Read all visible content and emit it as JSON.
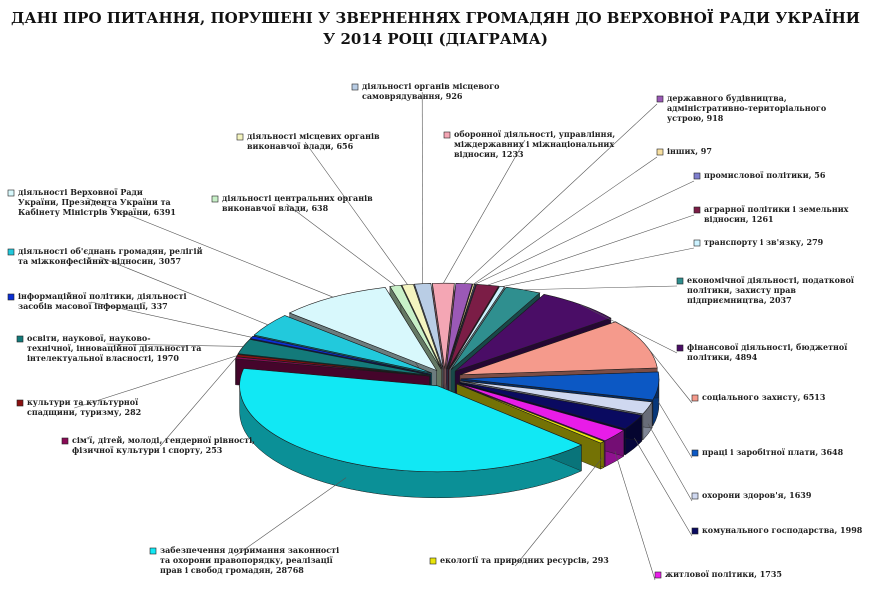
{
  "title": {
    "line1": "ДАНІ ПРО ПИТАННЯ, ПОРУШЕНІ У ЗВЕРНЕННЯХ ГРОМАДЯН ДО ВЕРХОВНОЇ РАДИ УКРАЇНИ",
    "line2": "У 2014 РОЦІ (ДІАГРАМА)"
  },
  "chart_data": {
    "type": "pie",
    "title": "ДАНІ ПРО ПИТАННЯ, ПОРУШЕНІ У ЗВЕРНЕННЯХ ГРОМАДЯН ДО ВЕРХОВНОЇ РАДИ УКРАЇНИ У 2014 РОЦІ (ДІАГРАМА)",
    "slices": [
      {
        "label": [
          "діяльності органів місцевого",
          "самоврядування, 926"
        ],
        "value": 926,
        "color": "#b9cde5"
      },
      {
        "label": [
          "оборонної діяльності, управління,",
          "міждержавних і міжнаціональних",
          "відносин, 1233"
        ],
        "value": 1233,
        "color": "#f4a6b4"
      },
      {
        "label": [
          "державного будівництва,",
          "адміністративно-територіального",
          "устрою, 918"
        ],
        "value": 918,
        "color": "#9b59b6"
      },
      {
        "label": [
          "інших, 97"
        ],
        "value": 97,
        "color": "#f7dfa0"
      },
      {
        "label": [
          "промислової політики, 56"
        ],
        "value": 56,
        "color": "#7f7fcf"
      },
      {
        "label": [
          "аграрної політики і земельних",
          "відносин, 1261"
        ],
        "value": 1261,
        "color": "#7b1d46"
      },
      {
        "label": [
          "транспорту і зв'язку, 279"
        ],
        "value": 279,
        "color": "#ccf2ff"
      },
      {
        "label": [
          "економічної діяльності, податкової",
          "політики, захисту прав",
          "підприємництва, 2037"
        ],
        "value": 2037,
        "color": "#2f8f8f"
      },
      {
        "label": [
          "фінансової діяльності, бюджетної",
          "політики, 4894"
        ],
        "value": 4894,
        "color": "#4a0d66"
      },
      {
        "label": [
          "соціального захисту, 6513"
        ],
        "value": 6513,
        "color": "#f59a8c"
      },
      {
        "label": [
          "праці і заробітної плати, 3648"
        ],
        "value": 3648,
        "color": "#0c58c4"
      },
      {
        "label": [
          "охорони здоров'я, 1639"
        ],
        "value": 1639,
        "color": "#cfd8f0"
      },
      {
        "label": [
          "комунального господарства, 1998"
        ],
        "value": 1998,
        "color": "#0a0a60"
      },
      {
        "label": [
          "житлової політики, 1735"
        ],
        "value": 1735,
        "color": "#e81ce8"
      },
      {
        "label": [
          "екології та природних ресурсів, 293"
        ],
        "value": 293,
        "color": "#e8e40a"
      },
      {
        "label": [
          "забезпечення дотримання законності",
          "та охорони правопорядку, реалізації",
          "прав і свобод громадян, 28768"
        ],
        "value": 28768,
        "color": "#11e8f4"
      },
      {
        "label": [
          "сім'ї, дітей, молоді, гендерної рівності,",
          "фізичної культури і спорту, 253"
        ],
        "value": 253,
        "color": "#8a0a56"
      },
      {
        "label": [
          "культури та культурної",
          "спадщини, туризму, 282"
        ],
        "value": 282,
        "color": "#8a1010"
      },
      {
        "label": [
          "освіти, наукової, науково-",
          "технічної, інноваційної діяльності та",
          "інтелектуальної власності, 1970"
        ],
        "value": 1970,
        "color": "#137a7a"
      },
      {
        "label": [
          "інформаційної політики, діяльності",
          "засобів масової інформації, 337"
        ],
        "value": 337,
        "color": "#0a2fd4"
      },
      {
        "label": [
          "діяльності об'єднань громадян, релігій",
          "та міжконфесійних відносин, 3057"
        ],
        "value": 3057,
        "color": "#22c9dc"
      },
      {
        "label": [
          "діяльності Верховної Ради",
          "України, Президента України та",
          "Кабінету Міністрів України, 6391"
        ],
        "value": 6391,
        "color": "#d8f8fc"
      },
      {
        "label": [
          "діяльності центральних органів",
          "виконавчої влади, 638"
        ],
        "value": 638,
        "color": "#c8f0c8"
      },
      {
        "label": [
          "діяльності місцевих органів",
          "виконавчої влади, 656"
        ],
        "value": 656,
        "color": "#f4f4c0"
      }
    ]
  }
}
